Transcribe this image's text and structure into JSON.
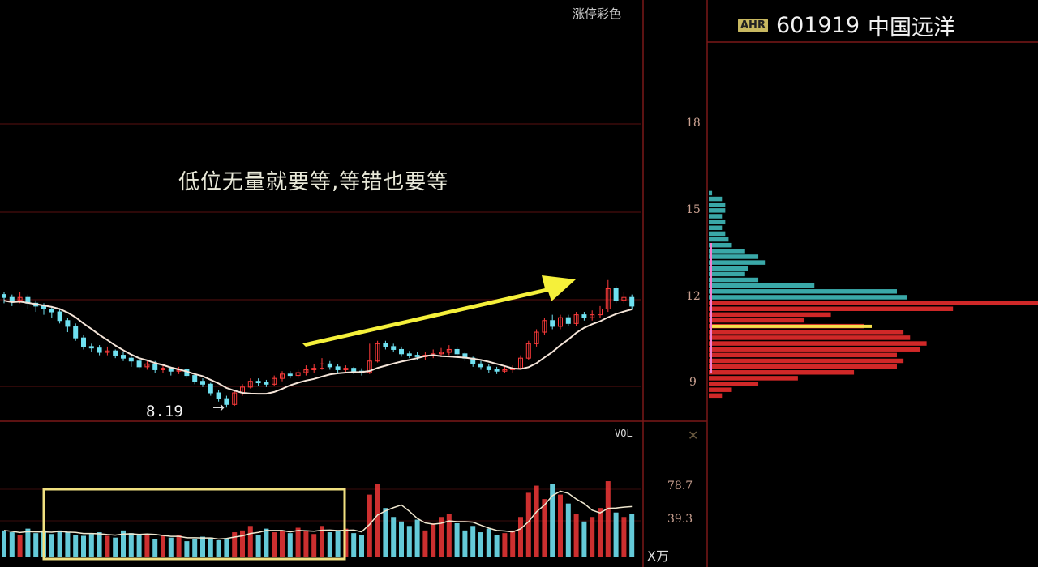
{
  "header": {
    "badge": "AHR",
    "code": "601919",
    "name": "中国远洋"
  },
  "color_scheme_label": "涨停彩色",
  "annotation": "低位无量就要等,等错也要等",
  "low_label": "8.19",
  "low_arrow": "→",
  "volume_label": "VOL",
  "volume_unit": "X万",
  "volume_icon": "✕",
  "colors": {
    "up": "#ff3b3b",
    "down": "#6fe0f0",
    "ma": "#f4e4d8",
    "arrow": "#f5f03a",
    "highlight_box": "#f0e080",
    "grid": "#5a0f0f",
    "profile_upper": "#3aa8a8",
    "profile_lower": "#d02828",
    "cost_line": "#f5e04a"
  },
  "chart_data": [
    {
      "type": "candlestick",
      "title": "",
      "price_axis_ticks": [
        "18",
        "15",
        "12",
        "9"
      ],
      "ylim": [
        8.0,
        18.5
      ],
      "grid": true,
      "low_marker": 8.19,
      "candles_ohlc": [
        [
          12.1,
          12.0,
          12.2,
          11.8
        ],
        [
          12.0,
          11.9,
          12.1,
          11.7
        ],
        [
          11.9,
          12.0,
          12.2,
          11.8
        ],
        [
          12.0,
          11.8,
          12.1,
          11.6
        ],
        [
          11.8,
          11.7,
          11.9,
          11.5
        ],
        [
          11.7,
          11.6,
          11.8,
          11.4
        ],
        [
          11.6,
          11.5,
          11.7,
          11.3
        ],
        [
          11.5,
          11.2,
          11.6,
          11.1
        ],
        [
          11.2,
          11.0,
          11.3,
          10.8
        ],
        [
          11.0,
          10.6,
          11.1,
          10.5
        ],
        [
          10.6,
          10.3,
          10.7,
          10.2
        ],
        [
          10.3,
          10.25,
          10.4,
          10.1
        ],
        [
          10.25,
          10.1,
          10.35,
          10.0
        ],
        [
          10.1,
          10.15,
          10.3,
          10.0
        ],
        [
          10.15,
          10.0,
          10.2,
          9.9
        ],
        [
          10.0,
          9.9,
          10.1,
          9.8
        ],
        [
          9.9,
          9.8,
          10.0,
          9.6
        ],
        [
          9.8,
          9.6,
          9.9,
          9.5
        ],
        [
          9.6,
          9.7,
          9.8,
          9.5
        ],
        [
          9.7,
          9.5,
          9.8,
          9.4
        ],
        [
          9.5,
          9.55,
          9.7,
          9.4
        ],
        [
          9.55,
          9.45,
          9.6,
          9.3
        ],
        [
          9.45,
          9.5,
          9.6,
          9.35
        ],
        [
          9.5,
          9.3,
          9.55,
          9.2
        ],
        [
          9.3,
          9.1,
          9.35,
          9.0
        ],
        [
          9.1,
          9.0,
          9.2,
          8.9
        ],
        [
          9.0,
          8.7,
          9.05,
          8.6
        ],
        [
          8.7,
          8.5,
          8.8,
          8.4
        ],
        [
          8.5,
          8.3,
          8.6,
          8.19
        ],
        [
          8.3,
          8.7,
          8.8,
          8.25
        ],
        [
          8.7,
          8.9,
          9.0,
          8.6
        ],
        [
          8.9,
          9.1,
          9.2,
          8.85
        ],
        [
          9.1,
          9.05,
          9.2,
          8.95
        ],
        [
          9.05,
          9.0,
          9.15,
          8.9
        ],
        [
          9.0,
          9.2,
          9.3,
          8.95
        ],
        [
          9.2,
          9.35,
          9.45,
          9.1
        ],
        [
          9.35,
          9.3,
          9.45,
          9.2
        ],
        [
          9.3,
          9.4,
          9.5,
          9.2
        ],
        [
          9.4,
          9.5,
          9.65,
          9.3
        ],
        [
          9.5,
          9.55,
          9.7,
          9.4
        ],
        [
          9.55,
          9.7,
          9.9,
          9.5
        ],
        [
          9.7,
          9.6,
          9.8,
          9.5
        ],
        [
          9.6,
          9.5,
          9.7,
          9.4
        ],
        [
          9.5,
          9.55,
          9.65,
          9.4
        ],
        [
          9.55,
          9.45,
          9.6,
          9.35
        ],
        [
          9.45,
          9.4,
          9.55,
          9.3
        ],
        [
          9.4,
          9.8,
          10.4,
          9.35
        ],
        [
          9.8,
          10.4,
          10.5,
          9.75
        ],
        [
          10.4,
          10.3,
          10.5,
          10.2
        ],
        [
          10.3,
          10.2,
          10.4,
          10.1
        ],
        [
          10.2,
          10.05,
          10.3,
          9.95
        ],
        [
          10.05,
          10.0,
          10.15,
          9.9
        ],
        [
          10.0,
          9.95,
          10.1,
          9.85
        ],
        [
          9.95,
          10.0,
          10.1,
          9.85
        ],
        [
          10.0,
          10.05,
          10.2,
          9.9
        ],
        [
          10.05,
          10.1,
          10.25,
          9.95
        ],
        [
          10.1,
          10.2,
          10.35,
          10.0
        ],
        [
          10.2,
          10.05,
          10.3,
          9.95
        ],
        [
          10.05,
          9.9,
          10.1,
          9.8
        ],
        [
          9.9,
          9.7,
          9.95,
          9.6
        ],
        [
          9.7,
          9.6,
          9.8,
          9.5
        ],
        [
          9.6,
          9.5,
          9.7,
          9.4
        ],
        [
          9.5,
          9.45,
          9.6,
          9.35
        ],
        [
          9.45,
          9.5,
          9.6,
          9.4
        ],
        [
          9.5,
          9.55,
          9.65,
          9.4
        ],
        [
          9.55,
          9.9,
          10.0,
          9.5
        ],
        [
          9.9,
          10.4,
          10.5,
          9.85
        ],
        [
          10.4,
          10.8,
          10.9,
          10.3
        ],
        [
          10.8,
          11.2,
          11.3,
          10.7
        ],
        [
          11.2,
          11.0,
          11.4,
          10.9
        ],
        [
          11.0,
          11.3,
          11.4,
          10.9
        ],
        [
          11.3,
          11.1,
          11.4,
          11.0
        ],
        [
          11.1,
          11.4,
          11.5,
          11.0
        ],
        [
          11.4,
          11.3,
          11.5,
          11.2
        ],
        [
          11.3,
          11.4,
          11.55,
          11.2
        ],
        [
          11.4,
          11.6,
          11.7,
          11.3
        ],
        [
          11.6,
          12.3,
          12.6,
          11.5
        ],
        [
          12.3,
          11.9,
          12.4,
          11.8
        ],
        [
          11.9,
          12.0,
          12.2,
          11.8
        ],
        [
          12.0,
          11.7,
          12.1,
          11.6
        ]
      ]
    },
    {
      "type": "bar",
      "title": "VOL",
      "unit": "X万",
      "y_ticks": [
        "78.7",
        "39.3"
      ],
      "ylim": [
        0,
        90
      ],
      "values": [
        30,
        28,
        25,
        32,
        27,
        30,
        26,
        30,
        28,
        25,
        24,
        26,
        28,
        24,
        22,
        30,
        27,
        25,
        26,
        20,
        24,
        22,
        25,
        18,
        20,
        23,
        22,
        19,
        21,
        28,
        30,
        35,
        25,
        32,
        28,
        30,
        27,
        33,
        30,
        26,
        35,
        28,
        30,
        32,
        27,
        25,
        70,
        82,
        55,
        45,
        40,
        35,
        42,
        30,
        38,
        45,
        48,
        38,
        30,
        35,
        28,
        32,
        25,
        27,
        30,
        45,
        72,
        80,
        65,
        82,
        70,
        60,
        48,
        40,
        45,
        55,
        85,
        50,
        45,
        48
      ]
    },
    {
      "type": "bar",
      "orientation": "horizontal",
      "title": "",
      "prices": [
        15.6,
        15.4,
        15.2,
        15.0,
        14.8,
        14.6,
        14.4,
        14.2,
        14.0,
        13.8,
        13.6,
        13.4,
        13.2,
        13.0,
        12.8,
        12.6,
        12.4,
        12.2,
        12.0,
        11.8,
        11.6,
        11.4,
        11.2,
        11.0,
        10.8,
        10.6,
        10.4,
        10.2,
        10.0,
        9.8,
        9.6,
        9.4,
        9.2,
        9.0,
        8.8,
        8.6
      ],
      "relative_volume_pct": [
        1,
        4,
        5,
        5,
        4,
        5,
        4,
        5,
        6,
        7,
        11,
        15,
        17,
        12,
        11,
        15,
        32,
        57,
        60,
        100,
        74,
        37,
        29,
        47,
        59,
        61,
        66,
        64,
        57,
        59,
        57,
        44,
        27,
        15,
        7,
        4
      ],
      "cost_price": 11.0
    }
  ]
}
